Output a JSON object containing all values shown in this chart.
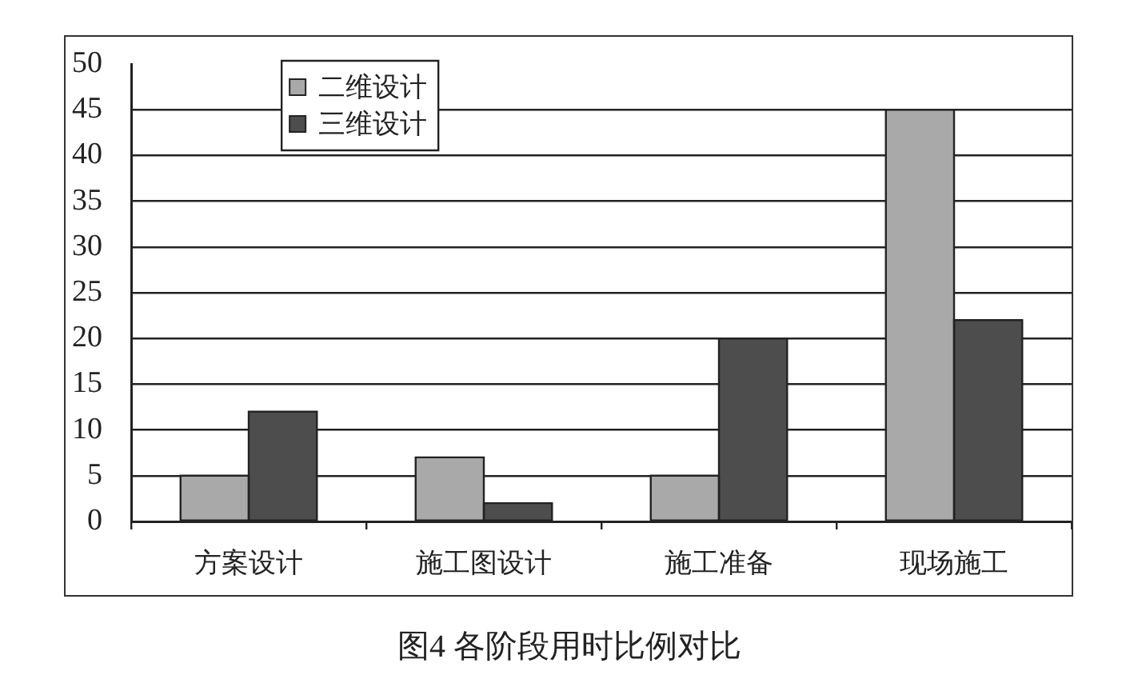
{
  "chart_data": {
    "type": "bar",
    "title": "图4 各阶段用时比例对比",
    "categories": [
      "方案设计",
      "施工图设计",
      "施工准备",
      "现场施工"
    ],
    "series": [
      {
        "name": "二维设计",
        "color": "#a9a9a9",
        "values": [
          5,
          7,
          5,
          45
        ]
      },
      {
        "name": "三维设计",
        "color": "#4d4d4d",
        "values": [
          12,
          2,
          20,
          22
        ]
      }
    ],
    "ylim": [
      0,
      50
    ],
    "yticks": [
      0,
      5,
      10,
      15,
      20,
      25,
      30,
      35,
      40,
      45,
      50
    ],
    "grid": "y",
    "legend": "top left"
  }
}
